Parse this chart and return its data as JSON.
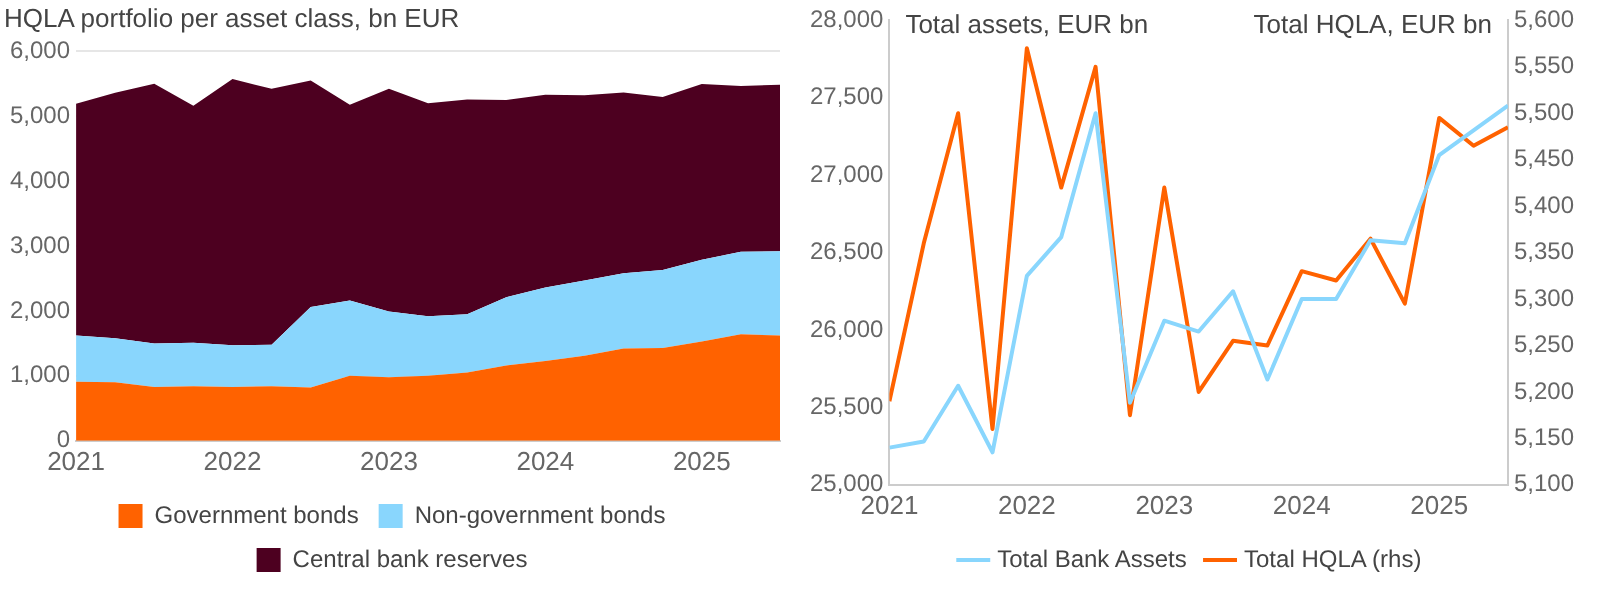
{
  "chart_data": [
    {
      "type": "area",
      "title": "HQLA portfolio per asset class, bn EUR",
      "stacked": true,
      "grid": "y",
      "legend": "bottom",
      "marker": "none",
      "x": [
        2021,
        2021.25,
        2021.5,
        2021.75,
        2022,
        2022.25,
        2022.5,
        2022.75,
        2023,
        2023.25,
        2023.5,
        2023.75,
        2024,
        2024.25,
        2024.5,
        2024.75,
        2025,
        2025.25,
        2025.5
      ],
      "xlim": [
        2021,
        2025.5
      ],
      "xticks": [
        2021,
        2022,
        2023,
        2024,
        2025
      ],
      "ylim": [
        0,
        6000
      ],
      "yticks": [
        0,
        {
          "value": 1000,
          "label": "1,000"
        },
        {
          "value": 2000,
          "label": "2,000"
        },
        {
          "value": 3000,
          "label": "3,000"
        },
        {
          "value": 4000,
          "label": "4,000"
        },
        {
          "value": 5000,
          "label": "5,000"
        },
        {
          "value": 6000,
          "label": "6,000"
        }
      ],
      "series": [
        {
          "name": "Government bonds",
          "color": "#ff6200",
          "values": [
            910,
            900,
            830,
            840,
            830,
            840,
            820,
            1000,
            980,
            1000,
            1050,
            1160,
            1230,
            1310,
            1420,
            1430,
            1530,
            1640,
            1620
          ]
        },
        {
          "name": "Non-government bonds",
          "color": "#89d6fd",
          "values": [
            710,
            680,
            670,
            670,
            640,
            640,
            1240,
            1160,
            1010,
            920,
            900,
            1050,
            1130,
            1160,
            1160,
            1200,
            1260,
            1270,
            1300
          ]
        },
        {
          "name": "Central bank reserves",
          "color": "#4d0020",
          "values": [
            3570,
            3780,
            4000,
            3650,
            4100,
            3940,
            3490,
            3015,
            3430,
            3280,
            3305,
            3040,
            2970,
            2850,
            2785,
            2665,
            2705,
            2555,
            2565
          ]
        }
      ]
    },
    {
      "type": "line",
      "ylabel": "Total assets, EUR bn",
      "y2label": "Total HQLA, EUR bn",
      "grid": false,
      "legend": "bottom",
      "marker": "none",
      "line_style": "solid",
      "x": [
        2021,
        2021.25,
        2021.5,
        2021.75,
        2022,
        2022.25,
        2022.5,
        2022.75,
        2023,
        2023.25,
        2023.5,
        2023.75,
        2024,
        2024.25,
        2024.5,
        2024.75,
        2025,
        2025.25,
        2025.5
      ],
      "xlim": [
        2021,
        2025.5
      ],
      "xticks": [
        2021,
        2022,
        2023,
        2024,
        2025
      ],
      "ylim": [
        25000,
        28000
      ],
      "yticks": [
        {
          "value": 25000,
          "label": "25,000"
        },
        {
          "value": 25500,
          "label": "25,500"
        },
        {
          "value": 26000,
          "label": "26,000"
        },
        {
          "value": 26500,
          "label": "26,500"
        },
        {
          "value": 27000,
          "label": "27,000"
        },
        {
          "value": 27500,
          "label": "27,500"
        },
        {
          "value": 28000,
          "label": "28,000"
        }
      ],
      "y2lim": [
        5100,
        5600
      ],
      "y2ticks": [
        {
          "value": 5100,
          "label": "5,100"
        },
        {
          "value": 5150,
          "label": "5,150"
        },
        {
          "value": 5200,
          "label": "5,200"
        },
        {
          "value": 5250,
          "label": "5,250"
        },
        {
          "value": 5300,
          "label": "5,300"
        },
        {
          "value": 5350,
          "label": "5,350"
        },
        {
          "value": 5400,
          "label": "5,400"
        },
        {
          "value": 5450,
          "label": "5,450"
        },
        {
          "value": 5500,
          "label": "5,500"
        },
        {
          "value": 5550,
          "label": "5,550"
        },
        {
          "value": 5600,
          "label": "5,600"
        }
      ],
      "series": [
        {
          "name": "Total Bank Assets",
          "color": "#89d6fd",
          "values": [
            25240,
            25280,
            25640,
            25210,
            26350,
            26600,
            27400,
            25530,
            26060,
            25990,
            26250,
            25680,
            26200,
            26200,
            26580,
            26560,
            27130,
            27290,
            27450
          ]
        },
        {
          "name": "Total HQLA (rhs)",
          "color": "#ff6200",
          "axis": "y2",
          "values": [
            5190,
            5360,
            5500,
            5160,
            5570,
            5420,
            5550,
            5175,
            5420,
            5200,
            5255,
            5250,
            5330,
            5320,
            5365,
            5295,
            5495,
            5465,
            5485
          ]
        }
      ]
    }
  ]
}
